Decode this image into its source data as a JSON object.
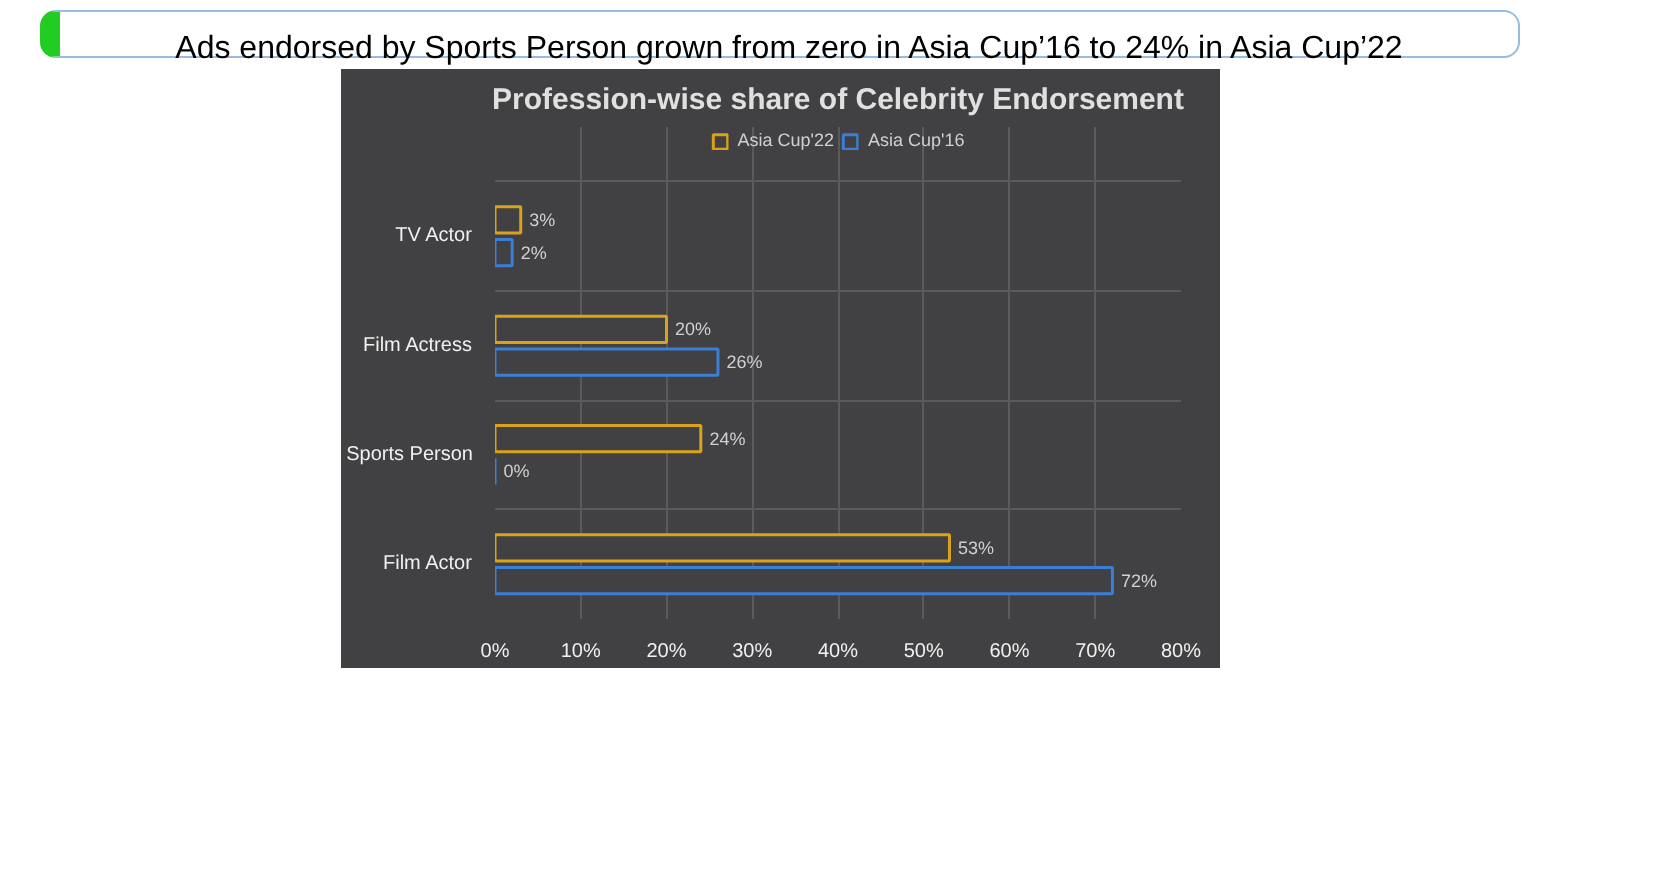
{
  "chart_data": {
    "type": "bar",
    "orientation": "horizontal",
    "title": "Profession-wise share of Celebrity Endorsement",
    "annotations": [
      "Ads endorsed by Sports Person grown from zero in Asia Cup’16 to 24% in Asia Cup’22"
    ],
    "categories": [
      "TV Actor",
      "Film Actress",
      "Sports Person",
      "Film Actor"
    ],
    "series": [
      {
        "name": "Asia Cup'22",
        "color": "#d9a21b",
        "values": [
          3,
          20,
          24,
          53
        ],
        "value_labels": [
          "3%",
          "20%",
          "24%",
          "53%"
        ]
      },
      {
        "name": "Asia Cup'16",
        "color": "#3a7fd5",
        "values": [
          2,
          26,
          0,
          72
        ],
        "value_labels": [
          "2%",
          "26%",
          "0%",
          "72%"
        ]
      }
    ],
    "xlim": [
      0,
      80
    ],
    "xticks": [
      {
        "value": 0,
        "label": "0%"
      },
      {
        "value": 10,
        "label": "10%"
      },
      {
        "value": 20,
        "label": "20%"
      },
      {
        "value": 30,
        "label": "30%"
      },
      {
        "value": 40,
        "label": "40%"
      },
      {
        "value": 50,
        "label": "50%"
      },
      {
        "value": 60,
        "label": "60%"
      },
      {
        "value": 70,
        "label": "70%"
      },
      {
        "value": 80,
        "label": "80%"
      }
    ],
    "grid": true,
    "legend": "top"
  }
}
